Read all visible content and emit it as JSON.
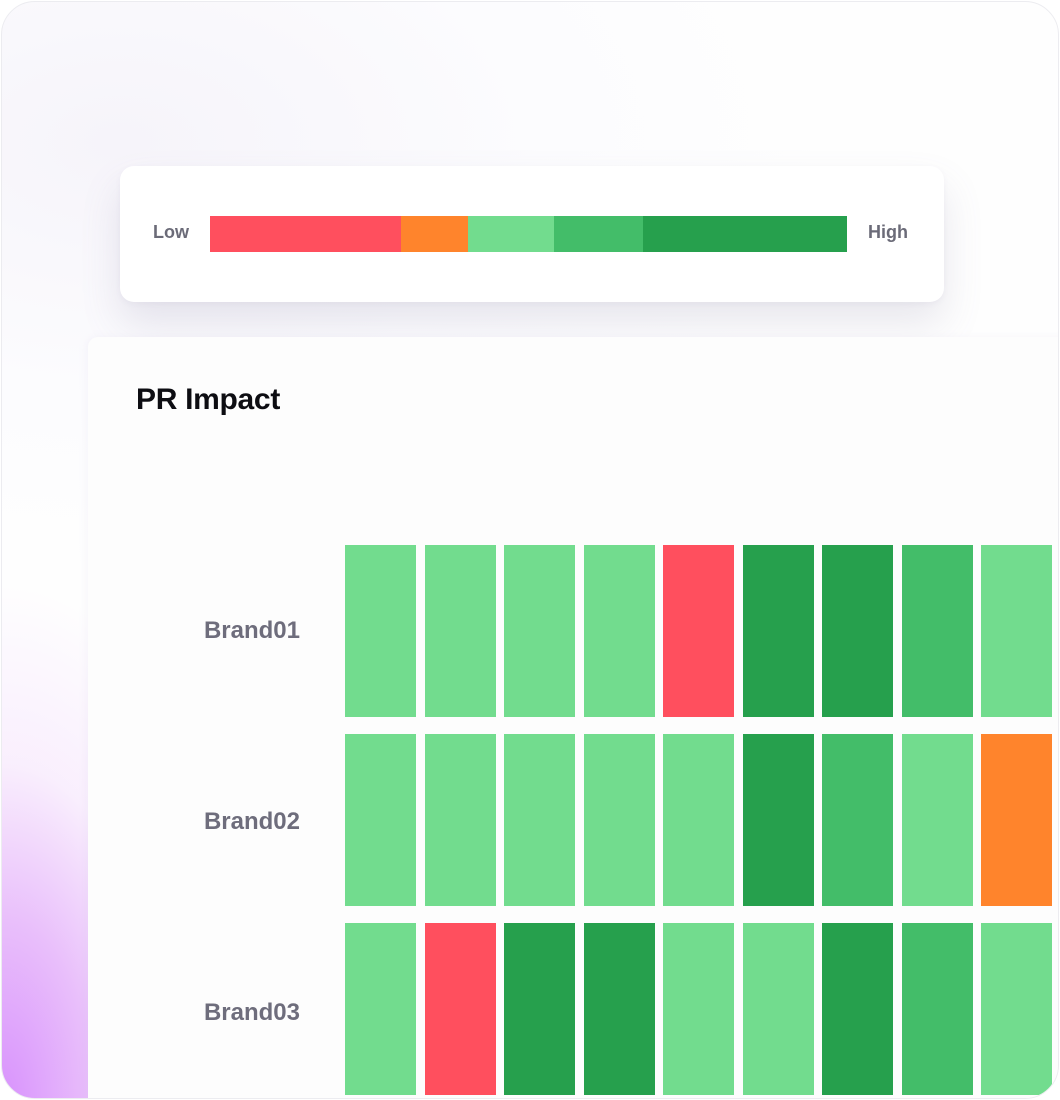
{
  "legend": {
    "low_label": "Low",
    "high_label": "High",
    "segments": [
      {
        "color": "#ff4f5e",
        "share": 0.3
      },
      {
        "color": "#ff842c",
        "share": 0.105
      },
      {
        "color": "#72dc8e",
        "share": 0.135
      },
      {
        "color": "#43bd69",
        "share": 0.14
      },
      {
        "color": "#26a04d",
        "share": 0.32
      }
    ]
  },
  "colors": {
    "level_1": "#ff4f5e",
    "level_2": "#ff842c",
    "level_3": "#72dc8e",
    "level_4": "#43bd69",
    "level_5": "#26a04d"
  },
  "panel": {
    "title": "PR Impact"
  },
  "chart_data": {
    "type": "heatmap",
    "title": "PR Impact",
    "scale": {
      "min_label": "Low",
      "max_label": "High",
      "levels": 5
    },
    "rows": [
      "Brand01",
      "Brand02",
      "Brand03"
    ],
    "values": [
      [
        3,
        3,
        3,
        3,
        1,
        5,
        5,
        4,
        3
      ],
      [
        3,
        3,
        3,
        3,
        3,
        5,
        4,
        3,
        2
      ],
      [
        3,
        1,
        5,
        5,
        3,
        3,
        5,
        4,
        3
      ]
    ]
  }
}
